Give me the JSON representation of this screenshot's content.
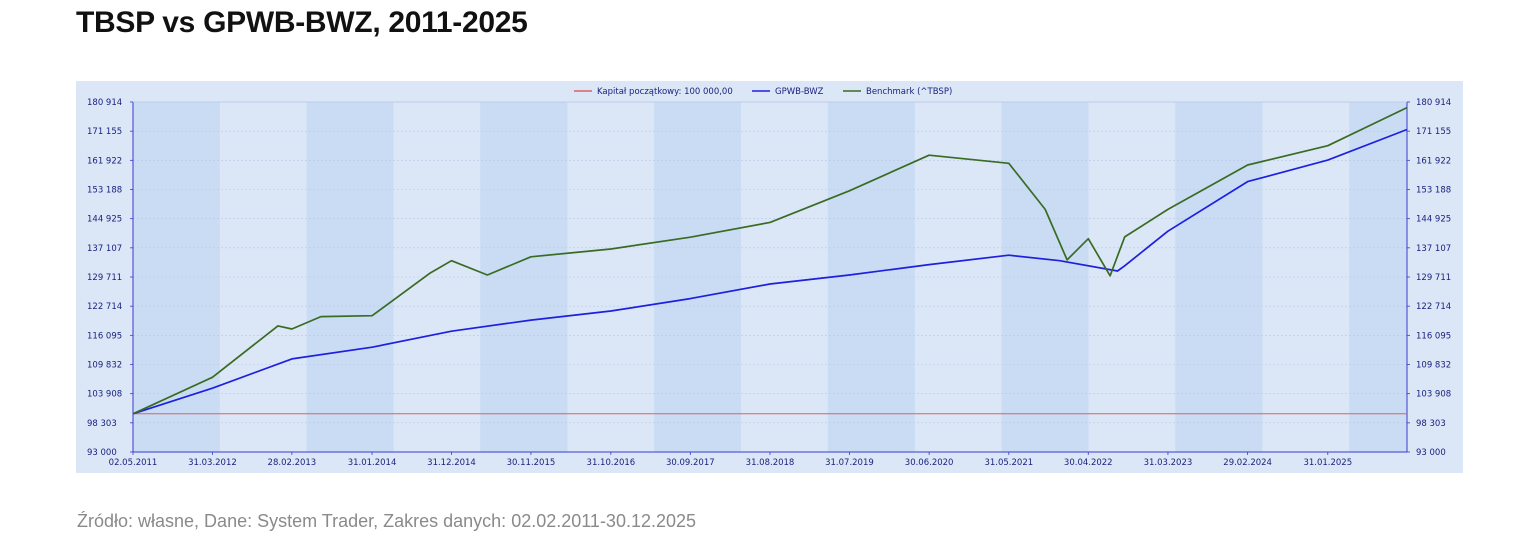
{
  "page": {
    "title": "TBSP vs GPWB-BWZ, 2011-2025",
    "source": "Źródło: własne, Dane: System Trader, Zakres danych: 02.02.2011-30.12.2025"
  },
  "colors": {
    "capital": "#e06060",
    "gpwb": "#1f1fe0",
    "benchmark": "#3a6b22",
    "plot_bg": "#dbe6f7",
    "band_bg": "#c9dcf4",
    "axis": "#3a3ad0"
  },
  "chart_data": {
    "type": "line",
    "title": "",
    "xlabel": "",
    "ylabel": "",
    "ylim": [
      93000,
      180914
    ],
    "y_ticks": [
      "93 000",
      "98 303",
      "103 908",
      "109 832",
      "116 095",
      "122 714",
      "129 711",
      "137 107",
      "144 925",
      "153 188",
      "161 922",
      "171 155",
      "180 914"
    ],
    "y_tick_values": [
      93000,
      98303,
      103908,
      109832,
      116095,
      122714,
      129711,
      137107,
      144925,
      153188,
      161922,
      171155,
      180914
    ],
    "log_scale": true,
    "x_ticks": [
      "02.05.2011",
      "31.03.2012",
      "28.02.2013",
      "31.01.2014",
      "31.12.2014",
      "30.11.2015",
      "31.10.2016",
      "30.09.2017",
      "31.08.2018",
      "31.07.2019",
      "30.06.2020",
      "31.05.2021",
      "30.04.2022",
      "31.03.2023",
      "29.02.2024",
      "31.01.2025"
    ],
    "legend": {
      "position": "top-center",
      "entries": [
        "Kapitał początkowy: 100 000,00",
        "GPWB-BWZ",
        "Benchmark (^TBSP)"
      ]
    },
    "grid": true,
    "alternating_year_bands": true,
    "series": [
      {
        "name": "Kapitał początkowy: 100 000,00",
        "x": [
          "02.05.2011",
          "30.12.2025"
        ],
        "values": [
          100000,
          100000
        ]
      },
      {
        "name": "GPWB-BWZ",
        "x": [
          "02.05.2011",
          "31.03.2012",
          "28.02.2013",
          "31.01.2014",
          "31.12.2014",
          "30.11.2015",
          "31.10.2016",
          "30.09.2017",
          "31.08.2018",
          "31.07.2019",
          "30.06.2020",
          "31.05.2021",
          "31.12.2021",
          "31.08.2022",
          "30.09.2022",
          "31.03.2023",
          "29.02.2024",
          "31.01.2025",
          "30.12.2025"
        ],
        "values": [
          100000,
          105000,
          111000,
          113500,
          117000,
          119500,
          121600,
          124500,
          128000,
          130200,
          132800,
          135200,
          133800,
          131200,
          132500,
          141500,
          155500,
          162000,
          171700
        ]
      },
      {
        "name": "Benchmark (^TBSP)",
        "x": [
          "02.05.2011",
          "31.03.2012",
          "31.12.2012",
          "28.02.2013",
          "30.06.2013",
          "31.01.2014",
          "30.09.2014",
          "31.12.2014",
          "31.05.2015",
          "30.11.2015",
          "31.10.2016",
          "30.09.2017",
          "31.08.2018",
          "31.07.2019",
          "30.06.2020",
          "31.05.2021",
          "31.10.2021",
          "31.01.2022",
          "30.04.2022",
          "31.07.2022",
          "30.09.2022",
          "31.03.2023",
          "29.02.2024",
          "31.01.2025",
          "30.12.2025"
        ],
        "values": [
          100000,
          107200,
          118200,
          117500,
          120300,
          120500,
          130600,
          133800,
          130200,
          134800,
          136800,
          139900,
          143900,
          152800,
          163500,
          161000,
          147500,
          134000,
          139500,
          130000,
          140000,
          147500,
          160500,
          166500,
          179000
        ]
      }
    ]
  }
}
